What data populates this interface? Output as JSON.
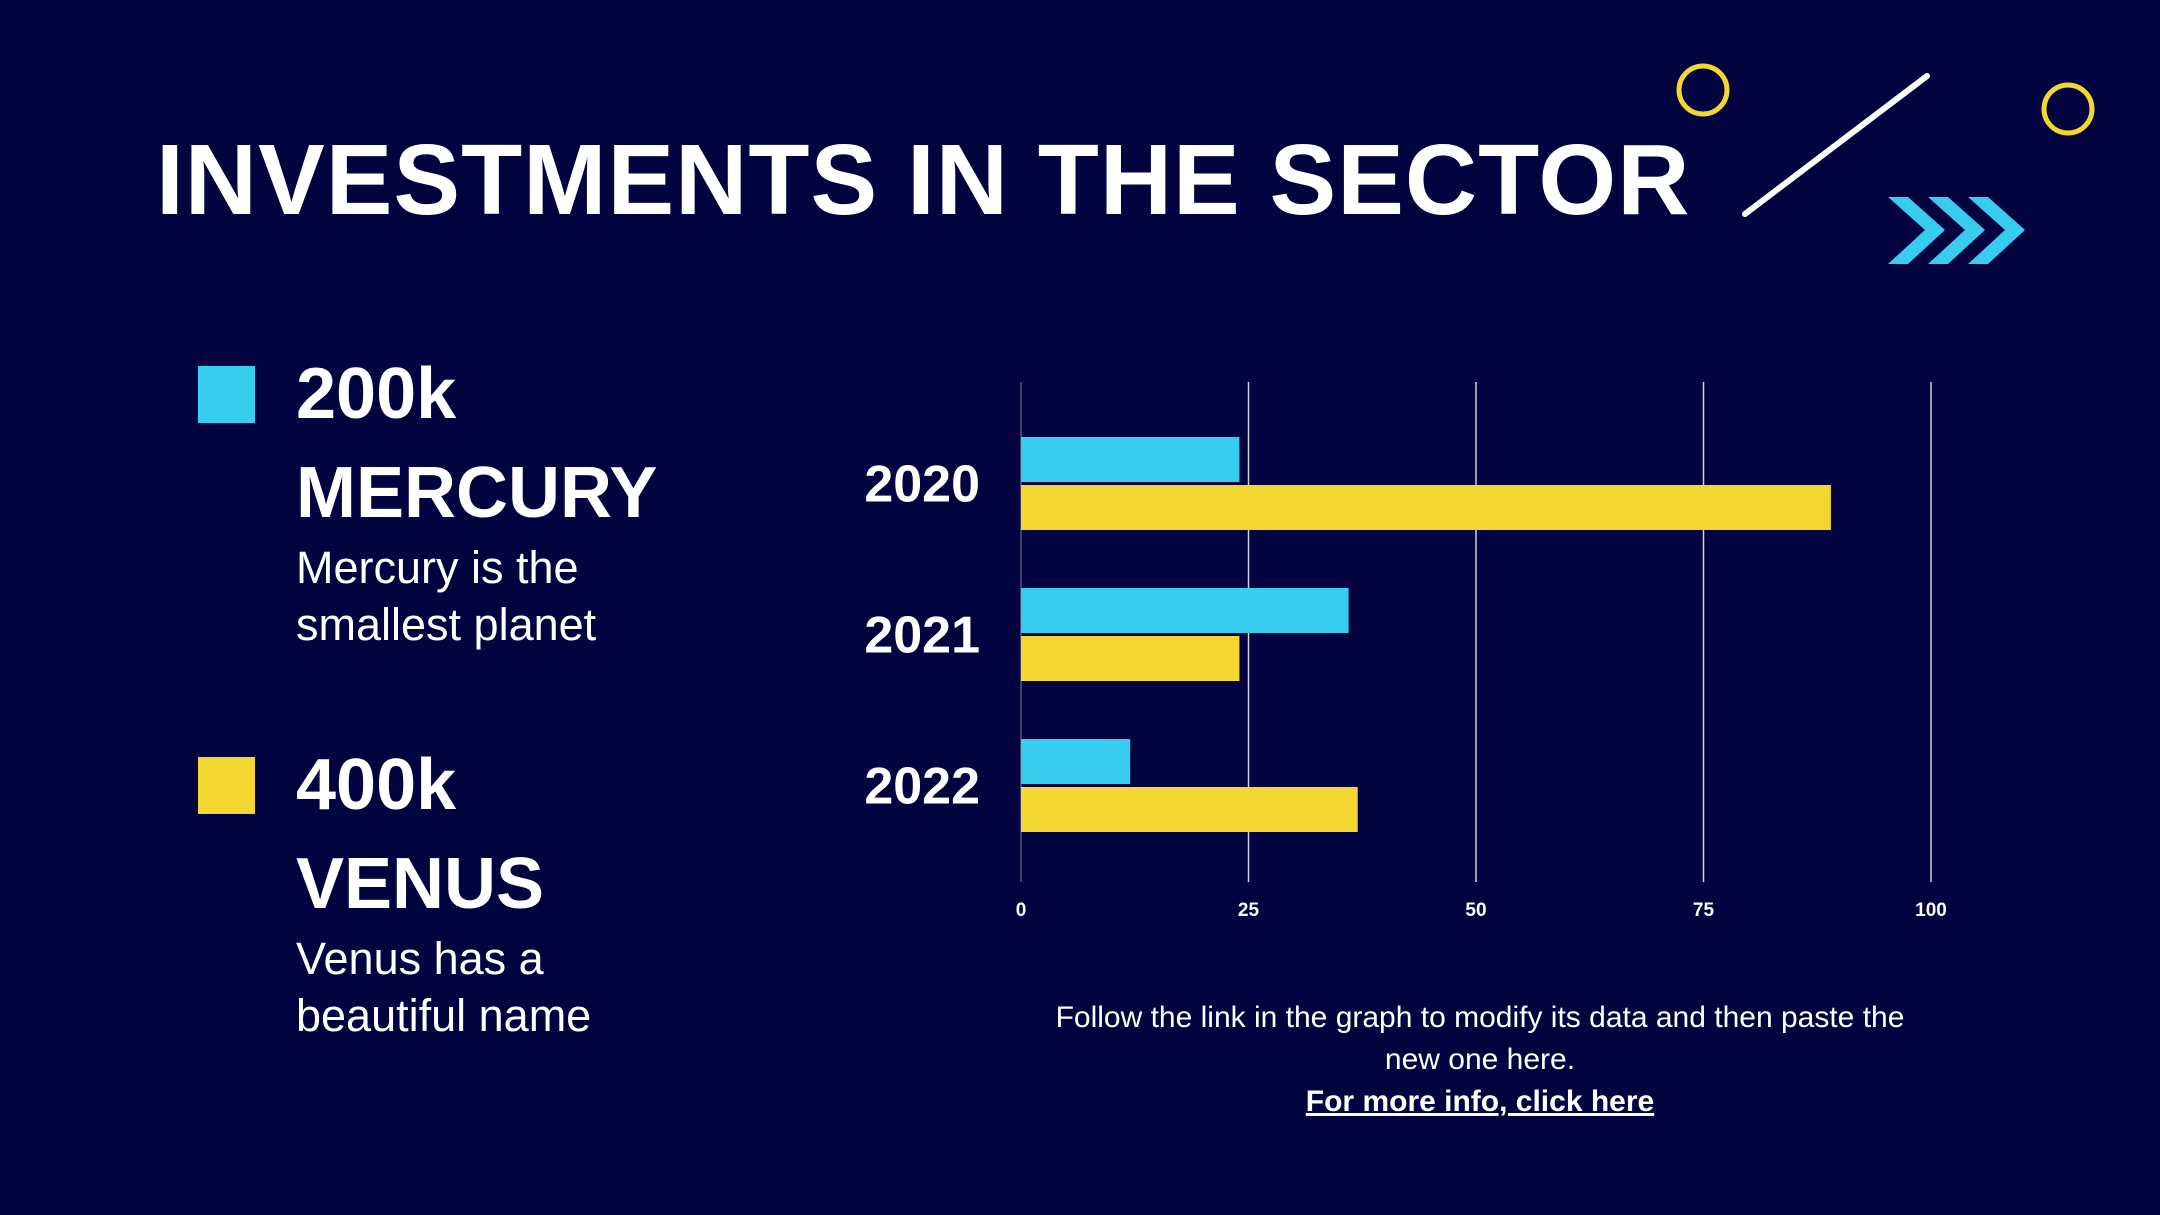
{
  "title": "INVESTMENTS IN THE SECTOR",
  "colors": {
    "background": "#03033f",
    "mercury": "#38cdee",
    "venus": "#f2d733",
    "text": "#ffffff"
  },
  "legend": [
    {
      "amount": "200k",
      "name": "MERCURY",
      "description": "Mercury is the smallest planet",
      "color": "#38cdee"
    },
    {
      "amount": "400k",
      "name": "VENUS",
      "description": "Venus has a beautiful name",
      "color": "#f2d733"
    }
  ],
  "chart_data": {
    "type": "bar",
    "orientation": "horizontal",
    "categories": [
      "2020",
      "2021",
      "2022"
    ],
    "series": [
      {
        "name": "MERCURY",
        "values": [
          24,
          36,
          12
        ],
        "color": "#38cdee"
      },
      {
        "name": "VENUS",
        "values": [
          89,
          24,
          37
        ],
        "color": "#f2d733"
      }
    ],
    "xlim": [
      0,
      100
    ],
    "xticks": [
      0,
      25,
      50,
      75,
      100
    ],
    "grid": true,
    "title": "",
    "xlabel": "",
    "ylabel": ""
  },
  "note": {
    "text": "Follow the link in the graph to modify its data and then paste the new one here.",
    "link_text": " For more info, click here"
  },
  "decorations": {
    "icons": [
      "circle-outline-icon",
      "circle-outline-icon",
      "diagonal-line-icon",
      "triple-chevron-icon"
    ]
  }
}
